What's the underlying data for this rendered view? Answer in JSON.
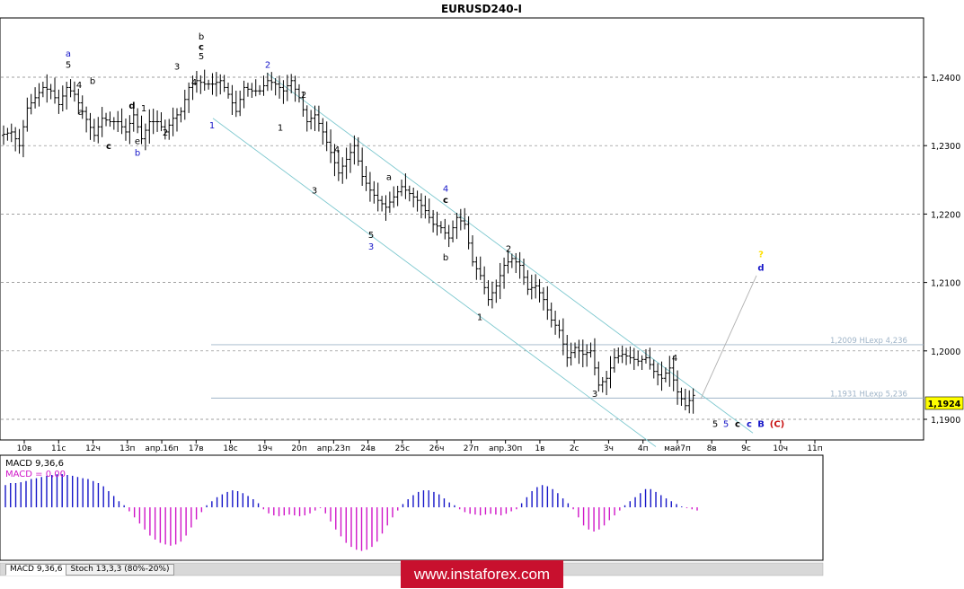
{
  "chart_title": "EURUSD240-I",
  "current_price_label": "1,1924",
  "tabs": [
    {
      "label": "MACD 9,36,6",
      "active": true
    },
    {
      "label": "Stoch 13,3,3 (80%-20%)",
      "active": false
    }
  ],
  "watermark": "www.instaforex.com",
  "colors": {
    "background": "#ffffff",
    "grid": "#808080",
    "candle": "#000000",
    "channel": "#7ec8cf",
    "fib": "#9fb4c8",
    "macd_positive": "#1515c8",
    "macd_negative": "#d016c8",
    "price_label_bg": "#ffff00",
    "wave_black": "#000000",
    "wave_blue": "#1515c8",
    "wave_red": "#c81010",
    "wave_yellow": "#ffe000",
    "logo_bg": "#c8102e"
  },
  "chart_data": {
    "type": "candlestick",
    "symbol": "EURUSD",
    "timeframe": "H4",
    "y_ticks": [
      "1,2400",
      "1,2300",
      "1,2200",
      "1,2100",
      "1,2000",
      "1,1900"
    ],
    "x_ticks": [
      "10в",
      "11с",
      "12ч",
      "13п",
      "апр.16п",
      "17в",
      "18с",
      "19ч",
      "20п",
      "апр.23п",
      "24в",
      "25с",
      "26ч",
      "27п",
      "апр.30п",
      "1в",
      "2с",
      "3ч",
      "4п",
      "май7п",
      "8в",
      "9с",
      "10ч",
      "11п"
    ],
    "ylim": [
      1.187,
      1.248
    ],
    "price_path": [
      [
        0,
        1.2315
      ],
      [
        3,
        1.232
      ],
      [
        5,
        1.23
      ],
      [
        7,
        1.2355
      ],
      [
        9,
        1.237
      ],
      [
        11,
        1.2385
      ],
      [
        13,
        1.238
      ],
      [
        15,
        1.236
      ],
      [
        17,
        1.2385
      ],
      [
        19,
        1.2375
      ],
      [
        21,
        1.235
      ],
      [
        24,
        1.2315
      ],
      [
        26,
        1.234
      ],
      [
        28,
        1.2335
      ],
      [
        30,
        1.2335
      ],
      [
        32,
        1.232
      ],
      [
        34,
        1.2345
      ],
      [
        36,
        1.231
      ],
      [
        38,
        1.2335
      ],
      [
        40,
        1.2335
      ],
      [
        42,
        1.232
      ],
      [
        44,
        1.234
      ],
      [
        46,
        1.235
      ],
      [
        48,
        1.2385
      ],
      [
        50,
        1.2395
      ],
      [
        52,
        1.239
      ],
      [
        54,
        1.239
      ],
      [
        56,
        1.2395
      ],
      [
        58,
        1.2375
      ],
      [
        60,
        1.235
      ],
      [
        62,
        1.2385
      ],
      [
        64,
        1.238
      ],
      [
        66,
        1.238
      ],
      [
        68,
        1.2395
      ],
      [
        70,
        1.239
      ],
      [
        72,
        1.238
      ],
      [
        74,
        1.2395
      ],
      [
        76,
        1.237
      ],
      [
        78,
        1.2335
      ],
      [
        80,
        1.2345
      ],
      [
        82,
        1.232
      ],
      [
        84,
        1.229
      ],
      [
        86,
        1.226
      ],
      [
        88,
        1.228
      ],
      [
        90,
        1.23
      ],
      [
        92,
        1.2255
      ],
      [
        94,
        1.2235
      ],
      [
        96,
        1.222
      ],
      [
        98,
        1.221
      ],
      [
        100,
        1.2225
      ],
      [
        102,
        1.224
      ],
      [
        104,
        1.223
      ],
      [
        106,
        1.222
      ],
      [
        108,
        1.2205
      ],
      [
        110,
        1.2185
      ],
      [
        112,
        1.218
      ],
      [
        114,
        1.2165
      ],
      [
        116,
        1.2195
      ],
      [
        118,
        1.2185
      ],
      [
        120,
        1.213
      ],
      [
        122,
        1.211
      ],
      [
        124,
        1.2075
      ],
      [
        126,
        1.2095
      ],
      [
        128,
        1.2125
      ],
      [
        130,
        1.2135
      ],
      [
        132,
        1.2125
      ],
      [
        134,
        1.209
      ],
      [
        136,
        1.2095
      ],
      [
        138,
        1.2075
      ],
      [
        140,
        1.2045
      ],
      [
        142,
        1.203
      ],
      [
        144,
        1.199
      ],
      [
        146,
        1.2005
      ],
      [
        148,
        1.1995
      ],
      [
        150,
        1.2
      ],
      [
        152,
        1.195
      ],
      [
        154,
        1.196
      ],
      [
        156,
        1.199
      ],
      [
        158,
        1.1995
      ],
      [
        160,
        1.199
      ],
      [
        162,
        1.1985
      ],
      [
        164,
        1.199
      ],
      [
        166,
        1.197
      ],
      [
        168,
        1.196
      ],
      [
        170,
        1.1975
      ],
      [
        172,
        1.194
      ],
      [
        174,
        1.192
      ],
      [
        176,
        1.1935
      ]
    ],
    "last_price": 1.1924,
    "fib_levels": [
      {
        "price": 1.2009,
        "label": "1,2009 HLexp 4,236"
      },
      {
        "price": 1.1931,
        "label": "1,1931 HLexp 5,236"
      }
    ],
    "channel": {
      "upper": {
        "from": [
          297,
          1.2406
        ],
        "to": [
          838,
          1.188
        ]
      },
      "lower": {
        "from": [
          237,
          1.234
        ],
        "to": [
          730,
          1.186
        ]
      }
    },
    "forecast_line": {
      "from": [
        780,
        1.193
      ],
      "to": [
        842,
        1.211
      ]
    },
    "wave_labels": [
      {
        "text": "a",
        "bar": 76,
        "price": 1.243,
        "color": "wave_blue"
      },
      {
        "text": "5",
        "bar": 76,
        "price": 1.2414,
        "color": "wave_black"
      },
      {
        "text": "b",
        "bar": 103,
        "price": 1.239,
        "color": "wave_black"
      },
      {
        "text": "4",
        "bar": 88,
        "price": 1.2384,
        "color": "wave_black"
      },
      {
        "text": "a",
        "bar": 90,
        "price": 1.2345,
        "color": "wave_black"
      },
      {
        "text": "d",
        "bar": 147,
        "price": 1.2354,
        "color": "wave_black"
      },
      {
        "text": "1",
        "bar": 160,
        "price": 1.235,
        "color": "wave_black"
      },
      {
        "text": "e",
        "bar": 153,
        "price": 1.2302,
        "color": "wave_black"
      },
      {
        "text": "b",
        "bar": 153,
        "price": 1.2285,
        "color": "wave_blue"
      },
      {
        "text": "c",
        "bar": 121,
        "price": 1.2295,
        "color": "wave_black"
      },
      {
        "text": "2",
        "bar": 184,
        "price": 1.2315,
        "color": "wave_black"
      },
      {
        "text": "3",
        "bar": 197,
        "price": 1.2411,
        "color": "wave_black"
      },
      {
        "text": "4",
        "bar": 216,
        "price": 1.2388,
        "color": "wave_black"
      },
      {
        "text": "b",
        "bar": 224,
        "price": 1.2455,
        "color": "wave_black"
      },
      {
        "text": "c",
        "bar": 224,
        "price": 1.244,
        "color": "wave_black"
      },
      {
        "text": "5",
        "bar": 224,
        "price": 1.2426,
        "color": "wave_black"
      },
      {
        "text": "1",
        "bar": 236,
        "price": 1.2325,
        "color": "wave_blue"
      },
      {
        "text": "2",
        "bar": 298,
        "price": 1.2414,
        "color": "wave_blue"
      },
      {
        "text": "2",
        "bar": 338,
        "price": 1.237,
        "color": "wave_black"
      },
      {
        "text": "1",
        "bar": 312,
        "price": 1.2322,
        "color": "wave_black"
      },
      {
        "text": "4",
        "bar": 375,
        "price": 1.229,
        "color": "wave_black"
      },
      {
        "text": "3",
        "bar": 350,
        "price": 1.223,
        "color": "wave_black"
      },
      {
        "text": "a",
        "bar": 433,
        "price": 1.225,
        "color": "wave_black"
      },
      {
        "text": "4",
        "bar": 496,
        "price": 1.2233,
        "color": "wave_blue"
      },
      {
        "text": "c",
        "bar": 496,
        "price": 1.2216,
        "color": "wave_black"
      },
      {
        "text": "5",
        "bar": 413,
        "price": 1.2165,
        "color": "wave_black"
      },
      {
        "text": "3",
        "bar": 413,
        "price": 1.2148,
        "color": "wave_blue"
      },
      {
        "text": "b",
        "bar": 496,
        "price": 1.2132,
        "color": "wave_black"
      },
      {
        "text": "2",
        "bar": 566,
        "price": 1.2145,
        "color": "wave_black"
      },
      {
        "text": "1",
        "bar": 534,
        "price": 1.2045,
        "color": "wave_black"
      },
      {
        "text": "3",
        "bar": 662,
        "price": 1.1933,
        "color": "wave_black"
      },
      {
        "text": "4",
        "bar": 751,
        "price": 1.1985,
        "color": "wave_black"
      },
      {
        "text": "5",
        "bar": 796,
        "price": 1.1889,
        "color": "wave_black"
      },
      {
        "text": "5",
        "bar": 808,
        "price": 1.1889,
        "color": "wave_blue"
      },
      {
        "text": "c",
        "bar": 821,
        "price": 1.1889,
        "color": "wave_black"
      },
      {
        "text": "c",
        "bar": 834,
        "price": 1.1889,
        "color": "wave_blue"
      },
      {
        "text": "B",
        "bar": 847,
        "price": 1.1889,
        "color": "wave_blue"
      },
      {
        "text": "(C)",
        "bar": 865,
        "price": 1.1889,
        "color": "wave_red"
      },
      {
        "text": "?",
        "bar": 847,
        "price": 1.2137,
        "color": "wave_yellow"
      },
      {
        "text": "d",
        "bar": 847,
        "price": 1.2117,
        "color": "wave_blue"
      }
    ],
    "indicator": {
      "name": "MACD 9,36,6",
      "label_line1": "MACD 9,36,6",
      "label_line2": "MACD = 0,00",
      "histogram": [
        0.55,
        0.6,
        0.6,
        0.62,
        0.65,
        0.7,
        0.72,
        0.75,
        0.78,
        0.8,
        0.82,
        0.82,
        0.8,
        0.78,
        0.75,
        0.72,
        0.7,
        0.65,
        0.6,
        0.52,
        0.4,
        0.28,
        0.15,
        0.05,
        -0.1,
        -0.25,
        -0.4,
        -0.55,
        -0.7,
        -0.8,
        -0.88,
        -0.92,
        -0.95,
        -0.92,
        -0.85,
        -0.7,
        -0.5,
        -0.3,
        -0.12,
        0.05,
        0.15,
        0.25,
        0.32,
        0.38,
        0.42,
        0.4,
        0.35,
        0.28,
        0.2,
        0.1,
        -0.05,
        -0.15,
        -0.2,
        -0.22,
        -0.2,
        -0.18,
        -0.2,
        -0.22,
        -0.2,
        -0.15,
        -0.08,
        -0.02,
        -0.15,
        -0.35,
        -0.55,
        -0.72,
        -0.88,
        -0.98,
        -1.05,
        -1.08,
        -1.05,
        -0.98,
        -0.85,
        -0.65,
        -0.45,
        -0.25,
        -0.08,
        0.08,
        0.2,
        0.3,
        0.38,
        0.42,
        0.42,
        0.38,
        0.32,
        0.22,
        0.12,
        0.05,
        -0.05,
        -0.12,
        -0.16,
        -0.18,
        -0.2,
        -0.18,
        -0.16,
        -0.18,
        -0.2,
        -0.16,
        -0.1,
        -0.05,
        0.1,
        0.25,
        0.4,
        0.5,
        0.55,
        0.52,
        0.45,
        0.35,
        0.22,
        0.1,
        -0.05,
        -0.25,
        -0.45,
        -0.55,
        -0.6,
        -0.55,
        -0.45,
        -0.32,
        -0.2,
        -0.08,
        0.05,
        0.15,
        0.25,
        0.35,
        0.45,
        0.45,
        0.38,
        0.3,
        0.22,
        0.15,
        0.08,
        0.02,
        -0.02,
        -0.05,
        -0.08
      ]
    }
  }
}
